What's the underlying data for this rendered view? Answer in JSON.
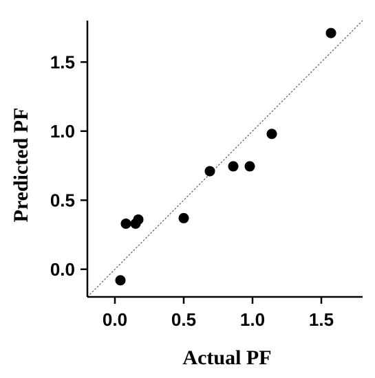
{
  "chart_data": {
    "type": "scatter",
    "title": "",
    "xlabel": "Actual PF",
    "ylabel": "Predicted PF",
    "xlim": [
      -0.2,
      1.8
    ],
    "ylim": [
      -0.2,
      1.8
    ],
    "x_ticks": [
      "0.0",
      "0.5",
      "1.0",
      "1.5"
    ],
    "y_ticks": [
      "0.0",
      "0.5",
      "1.0",
      "1.5"
    ],
    "x_tick_values": [
      0.0,
      0.5,
      1.0,
      1.5
    ],
    "y_tick_values": [
      0.0,
      0.5,
      1.0,
      1.5
    ],
    "identity_line": true,
    "grid": false,
    "legend": "none",
    "series": [
      {
        "points": [
          {
            "x": 0.04,
            "y": -0.08
          },
          {
            "x": 0.08,
            "y": 0.33
          },
          {
            "x": 0.15,
            "y": 0.33
          },
          {
            "x": 0.17,
            "y": 0.36
          },
          {
            "x": 0.5,
            "y": 0.37
          },
          {
            "x": 0.69,
            "y": 0.71
          },
          {
            "x": 0.86,
            "y": 0.745
          },
          {
            "x": 0.98,
            "y": 0.745
          },
          {
            "x": 1.14,
            "y": 0.98
          },
          {
            "x": 1.57,
            "y": 1.71
          }
        ]
      }
    ],
    "colors": {
      "marker": "#000000",
      "axis": "#000000",
      "identity_line": "#555555"
    }
  }
}
